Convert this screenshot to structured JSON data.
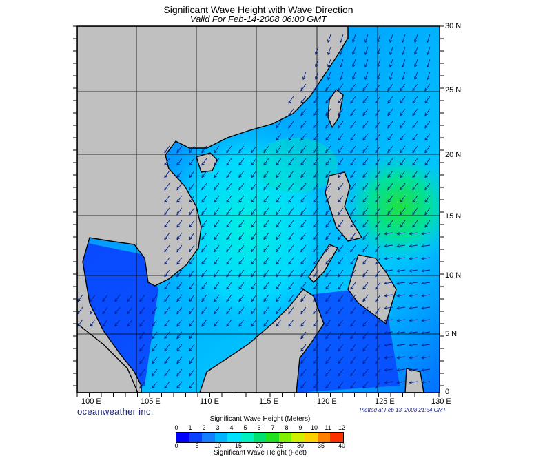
{
  "title": "Significant Wave Height with Wave Direction",
  "subtitle": "Valid For Feb-14-2008 06:00 GMT",
  "lon_labels": [
    "100 E",
    "105 E",
    "110 E",
    "115 E",
    "120 E",
    "125 E",
    "130 E"
  ],
  "lat_labels": [
    "30 N",
    "25 N",
    "20 N",
    "15 N",
    "10 N",
    "5 N",
    "0"
  ],
  "brand": "oceanweather inc.",
  "plotted_text": "Plotted at Feb 13, 2008 21:54 GMT",
  "colorbar": {
    "meters_title": "Significant Wave Height (Meters)",
    "feet_title": "Significant Wave Height (Feet)",
    "meters_ticks": [
      "0",
      "1",
      "2",
      "3",
      "4",
      "5",
      "6",
      "7",
      "8",
      "9",
      "10",
      "11",
      "12"
    ],
    "feet_ticks": [
      "0",
      "5",
      "10",
      "15",
      "20",
      "25",
      "30",
      "35",
      "40"
    ],
    "colors": [
      "#0000ff",
      "#0a40ff",
      "#1480ff",
      "#00b4ff",
      "#00e0ff",
      "#00f0c0",
      "#00e070",
      "#20e020",
      "#80f000",
      "#d0f000",
      "#ffd000",
      "#ff8000",
      "#ff3000"
    ]
  },
  "colors": {
    "land": "#c0c0c0",
    "coast": "#000000",
    "wave_low": "#0a40ff",
    "wave_mid": "#00c8ff",
    "wave_high": "#00e070"
  }
}
